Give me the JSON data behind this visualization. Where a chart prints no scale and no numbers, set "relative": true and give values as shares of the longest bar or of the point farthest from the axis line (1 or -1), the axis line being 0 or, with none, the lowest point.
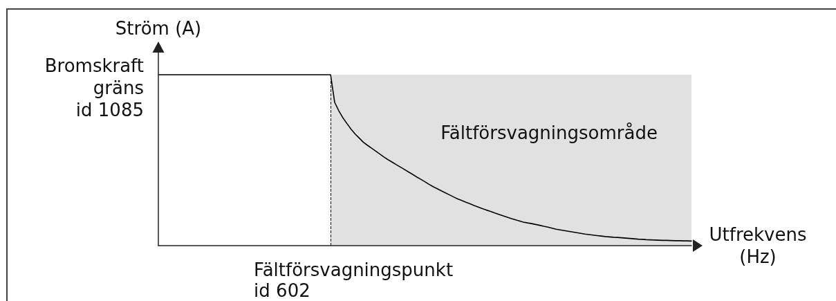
{
  "chart_data": {
    "type": "line",
    "ylabel": "Ström (A)",
    "xlabel": "Utfrekvens (Hz)",
    "relative": true,
    "categories": [
      null,
      null,
      null,
      null,
      null,
      null,
      null,
      null,
      null,
      null,
      null,
      null,
      null,
      null,
      null,
      null,
      null,
      null,
      null,
      null,
      null,
      null,
      null,
      null,
      null,
      null,
      null,
      null,
      null,
      null,
      null,
      null,
      null,
      null,
      null,
      null,
      null,
      null,
      null,
      null,
      null,
      null,
      null,
      null,
      null,
      null,
      null,
      null,
      null,
      null,
      null,
      null,
      null,
      null,
      null,
      null,
      null,
      null,
      null,
      null,
      null,
      null,
      null,
      null,
      null,
      null,
      null,
      null,
      null,
      null,
      null,
      null,
      null,
      null,
      null,
      null,
      null,
      null,
      null,
      null,
      null,
      null,
      null,
      null,
      null,
      null,
      null,
      null,
      null,
      null,
      null,
      null,
      null,
      null,
      null,
      null,
      null,
      null,
      null,
      null,
      null,
      null,
      null,
      null,
      null,
      null,
      null,
      null,
      null,
      null,
      null,
      null,
      null,
      null,
      null,
      null,
      null,
      null,
      null,
      null,
      null,
      null,
      null,
      null,
      null,
      null,
      null,
      null,
      null,
      null,
      null
    ],
    "series": [
      {
        "color": "#000000",
        "values": [
          1,
          1,
          1,
          1,
          1,
          1,
          1,
          1,
          1,
          1,
          1,
          1,
          1,
          1,
          1,
          1,
          1,
          1,
          1,
          1,
          1,
          1,
          1,
          1,
          1,
          1,
          1,
          1,
          1,
          1,
          1,
          1,
          1,
          1,
          1,
          1,
          1,
          1,
          1,
          1,
          1,
          1,
          1,
          0.838,
          0.789,
          0.748,
          0.714,
          0.681,
          0.653,
          0.629,
          0.605,
          0.587,
          0.57,
          0.553,
          0.536,
          0.519,
          0.503,
          0.489,
          0.474,
          0.46,
          0.446,
          0.431,
          0.417,
          0.402,
          0.388,
          0.374,
          0.359,
          0.345,
          0.333,
          0.321,
          0.309,
          0.297,
          0.285,
          0.273,
          0.264,
          0.254,
          0.245,
          0.235,
          0.226,
          0.217,
          0.208,
          0.2,
          0.191,
          0.183,
          0.175,
          0.167,
          0.159,
          0.152,
          0.145,
          0.138,
          0.133,
          0.129,
          0.124,
          0.119,
          0.113,
          0.108,
          0.102,
          0.096,
          0.092,
          0.088,
          0.084,
          0.08,
          0.076,
          0.072,
          0.068,
          0.065,
          0.062,
          0.059,
          0.056,
          0.053,
          0.051,
          0.049,
          0.048,
          0.046,
          0.044,
          0.042,
          0.04,
          0.038,
          0.037,
          0.035,
          0.034,
          0.033,
          0.032,
          0.031,
          0.031,
          0.03,
          0.029,
          0.029,
          0.028,
          0.028,
          0.027
        ]
      }
    ],
    "annotations": [
      "Bromskraft gräns id 1085",
      "Fältförsvagningsområde",
      "Fältförsvagningspunkt id 602"
    ]
  }
}
